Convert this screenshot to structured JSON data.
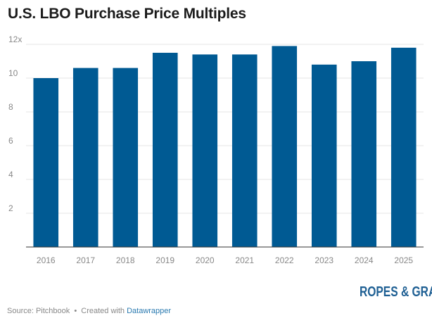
{
  "title": "U.S. LBO Purchase Price Multiples",
  "colors": {
    "bar": "#005a93",
    "grid": "#e6e6e6",
    "axis": "#333333",
    "tick_label": "#888888"
  },
  "chart_data": {
    "type": "bar",
    "categories": [
      "2016",
      "2017",
      "2018",
      "2019",
      "2020",
      "2021",
      "2022",
      "2023",
      "2024",
      "2025"
    ],
    "values": [
      10.0,
      10.6,
      10.6,
      11.5,
      11.4,
      11.4,
      11.9,
      10.8,
      11.0,
      11.8
    ],
    "ylim": [
      0,
      12
    ],
    "yticks": [
      2,
      4,
      6,
      8,
      10,
      12
    ],
    "ytick_labels": [
      "2",
      "4",
      "6",
      "8",
      "10",
      "12x"
    ],
    "grid": true,
    "legend": "none"
  },
  "footer": {
    "source": "Source: Pitchbook",
    "separator": "•",
    "created_with": "Created with",
    "tool": "Datawrapper"
  },
  "logo": {
    "text": "ROPES & GRAY"
  }
}
